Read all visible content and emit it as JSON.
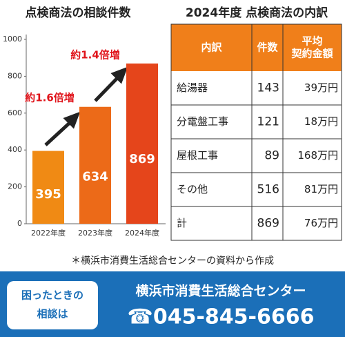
{
  "chart_data": {
    "type": "bar",
    "title": "点検商法の相談件数",
    "categories": [
      "2022年度",
      "2023年度",
      "2024年度"
    ],
    "values": [
      395,
      634,
      869
    ],
    "colors": [
      "#f08a14",
      "#ec6a18",
      "#e5451b"
    ],
    "ylim": [
      0,
      1000
    ],
    "yticks": [
      0,
      200,
      400,
      600,
      800,
      1000
    ],
    "grid": false,
    "annotations": [
      {
        "text": "約1.6倍増"
      },
      {
        "text": "約1.4倍増"
      }
    ]
  },
  "table": {
    "title": "2024年度 点検商法の内訳",
    "header": [
      [
        "内訳"
      ],
      [
        "件数"
      ],
      [
        "平均",
        "契約金額"
      ]
    ],
    "rows": [
      [
        "給湯器",
        143,
        "39万円"
      ],
      [
        "分電盤工事",
        121,
        "18万円"
      ],
      [
        "屋根工事",
        89,
        "168万円"
      ],
      [
        "その他",
        516,
        "81万円"
      ],
      [
        "計",
        869,
        "76万円"
      ]
    ]
  },
  "note": "＊横浜市消費生活総合センターの資料から作成",
  "footer": {
    "consult": [
      "困ったときの",
      "相談は"
    ],
    "center": "横浜市消費生活総合センター",
    "phone": "☎045-845-6666"
  }
}
